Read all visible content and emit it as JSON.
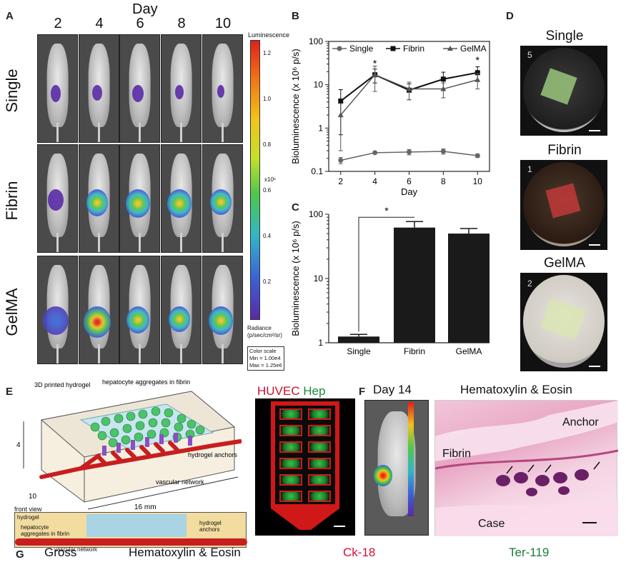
{
  "panelA": {
    "label": "A",
    "day_title": "Day",
    "days": [
      "2",
      "4",
      "6",
      "8",
      "10"
    ],
    "rows": [
      "Single",
      "Fibrin",
      "GelMA"
    ],
    "colorbar": {
      "title": "Luminescence",
      "ticks": [
        "1.2",
        "1.0",
        "0.8",
        "0.6",
        "0.4",
        "0.2"
      ],
      "multiplier": "x10⁶",
      "unit_line1": "Radiance",
      "unit_line2": "(p/sec/cm²/sr)",
      "scale_title": "Color scale",
      "min": "Min = 1.00e4",
      "max": "Max = 1.25e6"
    }
  },
  "panelB": {
    "label": "B",
    "legend": [
      "Single",
      "Fibrin",
      "GelMA"
    ],
    "ylabel": "Bioluminescence (x 10⁶ p/s)",
    "xlabel": "Day",
    "star": "*"
  },
  "panelC": {
    "label": "C",
    "ylabel": "Bioluminescence (x 10⁶ p/s)",
    "star": "*"
  },
  "panelD": {
    "label": "D",
    "titles": [
      "Single",
      "Fibrin",
      "GelMA"
    ],
    "dish_numbers": [
      "5",
      "1",
      "2"
    ]
  },
  "panelE": {
    "label": "E",
    "printed_hydrogel": "3D printed hydrogel",
    "hep_aggregates": "hepatocyte aggregates in fibrin",
    "hydrogel_anchors": "hydrogel anchors",
    "vascular_network": "vascular network",
    "dim_height": "4",
    "dim_depth": "10",
    "dim_length": "16 mm",
    "front_view": "front view",
    "fv_hydrogel": "hydrogel",
    "fv_hep": "hepatocyte aggregates in fibrin",
    "fv_anchors": "hydrogel anchors",
    "fv_vascular": "vascular network",
    "huvec": "HUVEC",
    "hep": "Hep"
  },
  "panelF": {
    "label": "F",
    "day": "Day 14",
    "he_title": "Hematoxylin & Eosin",
    "anchor": "Anchor",
    "fibrin": "Fibrin",
    "case": "Case"
  },
  "panelG": {
    "label": "G",
    "cols": [
      "Gross",
      "Hematoxylin & Eosin",
      "Ck-18",
      "Ter-119"
    ]
  },
  "colors": {
    "fibrin_red": "#c8102e",
    "hep_green": "#1a8a3a",
    "ck18": "#d0103a",
    "ter119": "#1f7a3a"
  },
  "chart_data": [
    {
      "type": "line",
      "title": "",
      "xlabel": "Day",
      "ylabel": "Bioluminescence (x 10⁶ p/s)",
      "yscale": "log",
      "ylim": [
        0.1,
        100
      ],
      "x": [
        2,
        4,
        6,
        8,
        10
      ],
      "xticks": [
        "2",
        "4",
        "6",
        "8",
        "10"
      ],
      "yticks": [
        "0.1",
        "1",
        "10",
        "100"
      ],
      "series": [
        {
          "name": "Single",
          "values": [
            0.18,
            0.27,
            0.28,
            0.29,
            0.23
          ],
          "err": [
            0.03,
            0.01,
            0.04,
            0.04,
            0.02
          ]
        },
        {
          "name": "Fibrin",
          "values": [
            4.2,
            17,
            7.5,
            13.5,
            19
          ],
          "err": [
            3.5,
            6,
            3,
            6,
            7
          ]
        },
        {
          "name": "GelMA",
          "values": [
            2.0,
            17,
            8.0,
            8.0,
            13
          ],
          "err": [
            1.7,
            10,
            3.5,
            3,
            5
          ]
        }
      ],
      "annotations": [
        "*",
        "*"
      ],
      "legend": "top"
    },
    {
      "type": "bar",
      "title": "",
      "xlabel": "",
      "ylabel": "Bioluminescence (x 10⁶ p/s)",
      "yscale": "log",
      "ylim": [
        1,
        100
      ],
      "categories": [
        "Single",
        "Fibrin",
        "GelMA"
      ],
      "values": [
        1.25,
        62,
        50
      ],
      "err": [
        0.1,
        15,
        10
      ],
      "yticks": [
        "1",
        "10",
        "100"
      ],
      "annotations": [
        "*"
      ]
    }
  ]
}
